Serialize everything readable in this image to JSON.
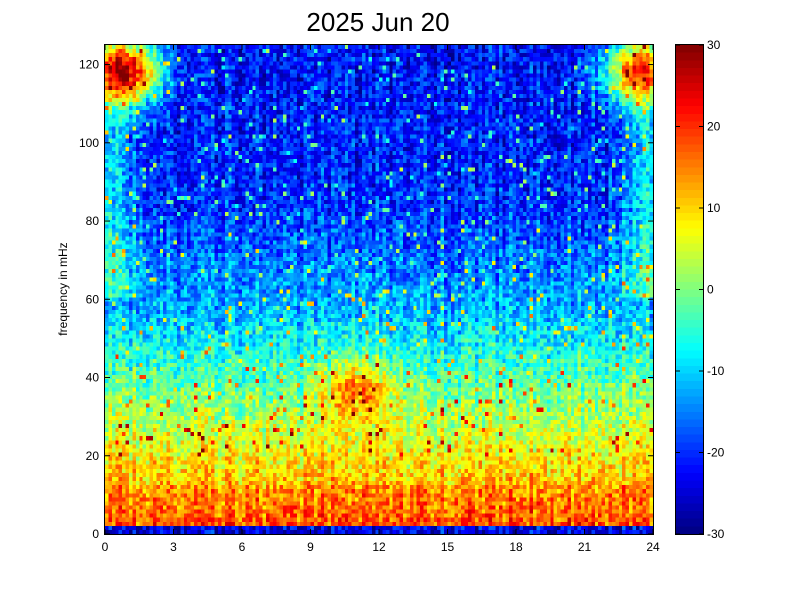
{
  "chart_data": {
    "type": "heatmap",
    "title": "2025 Jun 20",
    "xlabel": "",
    "ylabel": "frequency in mHz",
    "xlim": [
      0,
      24
    ],
    "ylim": [
      0,
      125
    ],
    "x_ticks": [
      "0",
      "3",
      "6",
      "9",
      "12",
      "15",
      "18",
      "21",
      "24"
    ],
    "y_ticks": [
      "0",
      "20",
      "40",
      "60",
      "80",
      "100",
      "120"
    ],
    "colorbar": {
      "range": [
        -30,
        30
      ],
      "ticks": [
        "-30",
        "-20",
        "-10",
        "0",
        "10",
        "20",
        "30"
      ],
      "colormap": "jet"
    },
    "grid": {
      "x_bins": 160,
      "y_bins": 120,
      "description_levels_db": [
        {
          "freq_range_mhz": [
            0,
            2
          ],
          "level_db": -22
        },
        {
          "freq_range_mhz": [
            2,
            12
          ],
          "level_db": 18
        },
        {
          "freq_range_mhz": [
            12,
            30
          ],
          "level_db": 8
        },
        {
          "freq_range_mhz": [
            30,
            50
          ],
          "level_db": 0
        },
        {
          "freq_range_mhz": [
            50,
            80
          ],
          "level_db": -12
        },
        {
          "freq_range_mhz": [
            80,
            125
          ],
          "level_db": -20
        }
      ],
      "hotspots": [
        {
          "hour": 11,
          "freq_mhz": 36,
          "peak_db": 15
        },
        {
          "hour": 0.8,
          "freq_mhz": 118,
          "peak_db": 28
        },
        {
          "hour": 23.5,
          "freq_mhz": 118,
          "peak_db": 20
        }
      ]
    }
  }
}
